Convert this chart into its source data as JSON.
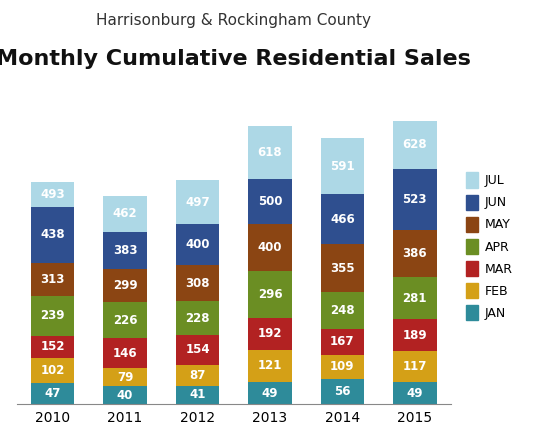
{
  "title_line1": "Harrisonburg & Rockingham County",
  "title_line2": "Monthly Cumulative Residential Sales",
  "years": [
    "2010",
    "2011",
    "2012",
    "2013",
    "2014",
    "2015"
  ],
  "months": [
    "JAN",
    "FEB",
    "MAR",
    "APR",
    "MAY",
    "JUN",
    "JUL"
  ],
  "colors": {
    "JAN": "#2E8B9A",
    "FEB": "#D4A017",
    "MAR": "#B22222",
    "APR": "#6B8E23",
    "MAY": "#8B4513",
    "JUN": "#2F4F8F",
    "JUL": "#ADD8E6"
  },
  "data": {
    "JAN": [
      47,
      40,
      41,
      49,
      56,
      49
    ],
    "FEB": [
      102,
      79,
      87,
      121,
      109,
      117
    ],
    "MAR": [
      152,
      146,
      154,
      192,
      167,
      189
    ],
    "APR": [
      239,
      226,
      228,
      296,
      248,
      281
    ],
    "MAY": [
      313,
      299,
      308,
      400,
      355,
      386
    ],
    "JUN": [
      438,
      383,
      400,
      500,
      466,
      523
    ],
    "JUL": [
      493,
      462,
      497,
      618,
      591,
      628
    ]
  },
  "background_color": "#ffffff",
  "bar_width": 0.6,
  "ylim": [
    0,
    700
  ],
  "label_fontsize": 8.5,
  "title1_fontsize": 11,
  "title2_fontsize": 16,
  "xtick_fontsize": 10,
  "legend_fontsize": 9
}
